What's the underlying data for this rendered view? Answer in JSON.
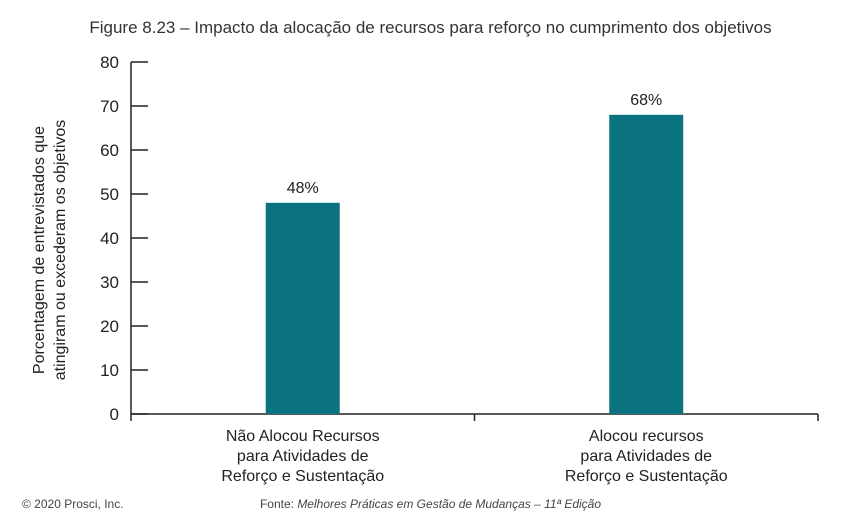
{
  "chart_data": {
    "type": "bar",
    "title": "Figure 8.23 – Impacto da alocação de recursos para reforço no cumprimento dos objetivos",
    "xlabel": "",
    "ylabel_lines": [
      "Porcentagem de entrevistados que",
      "atingiram ou excederam os objetivos"
    ],
    "categories": [
      [
        "Não Alocou Recursos",
        "para Atividades de",
        "Reforço e Sustentação"
      ],
      [
        "Alocou recursos",
        "para Atividades de",
        "Reforço e Sustentação"
      ]
    ],
    "values": [
      48,
      68
    ],
    "data_labels": [
      "48%",
      "68%"
    ],
    "ylim": [
      0,
      80
    ],
    "yticks": [
      0,
      10,
      20,
      30,
      40,
      50,
      60,
      70,
      80
    ],
    "grid": false,
    "bar_color": "#0b7380"
  },
  "footer": {
    "copyright": "© 2020 Prosci, Inc.",
    "source_prefix": "Fonte: ",
    "source_title": "Melhores Práticas em Gestão de Mudanças – 11ª Edição"
  }
}
